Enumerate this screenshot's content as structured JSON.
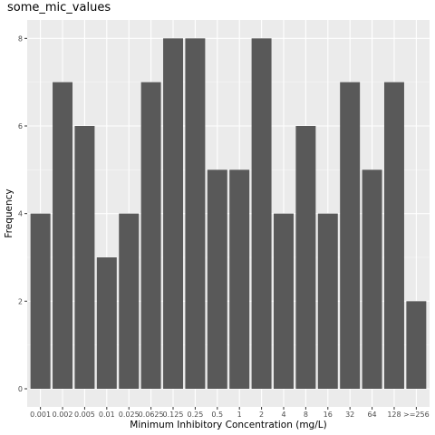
{
  "chart_data": {
    "type": "bar",
    "title": "some_mic_values",
    "xlabel": "Minimum Inhibitory Concentration (mg/L)",
    "ylabel": "Frequency",
    "categories": [
      "0.001",
      "0.002",
      "0.005",
      "0.01",
      "0.025",
      "0.0625",
      "0.125",
      "0.25",
      "0.5",
      "1",
      "2",
      "4",
      "8",
      "16",
      "32",
      "64",
      "128",
      ">=256"
    ],
    "values": [
      4,
      7,
      6,
      3,
      4,
      7,
      8,
      8,
      5,
      5,
      8,
      4,
      6,
      4,
      7,
      5,
      7,
      2
    ],
    "ylim": [
      0,
      8.4
    ],
    "yticks": [
      0,
      2,
      4,
      6,
      8
    ],
    "grid": true,
    "colors": {
      "bar": "#595959",
      "panel": "#ebebeb",
      "grid_major": "#ffffff",
      "grid_minor": "#f5f5f5"
    }
  }
}
